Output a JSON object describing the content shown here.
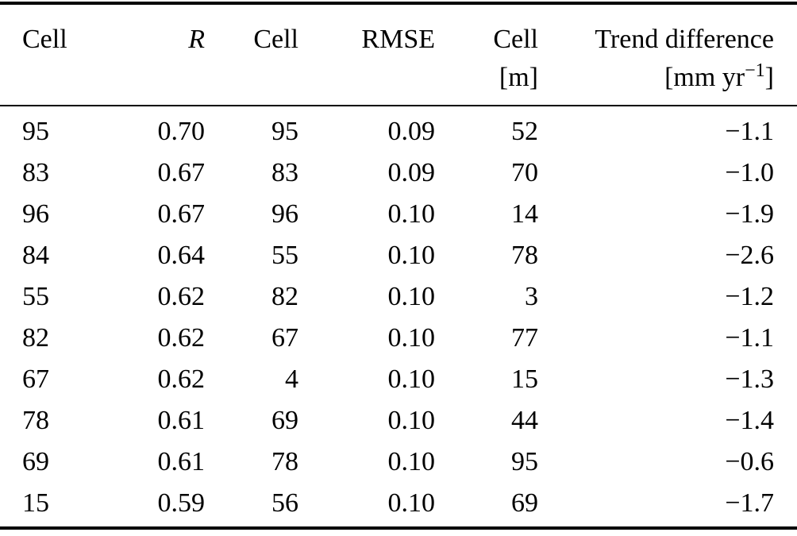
{
  "table": {
    "columns": [
      {
        "label": "Cell",
        "unit": ""
      },
      {
        "label": "R",
        "unit": ""
      },
      {
        "label": "Cell",
        "unit": ""
      },
      {
        "label": "RMSE",
        "unit": ""
      },
      {
        "label": "Cell",
        "unit": "[m]"
      },
      {
        "label": "Trend difference",
        "unit_prefix": "[mm yr",
        "unit_sup": "−1",
        "unit_suffix": "]"
      }
    ],
    "rows": [
      [
        "95",
        "0.70",
        "95",
        "0.09",
        "52",
        "−1.1"
      ],
      [
        "83",
        "0.67",
        "83",
        "0.09",
        "70",
        "−1.0"
      ],
      [
        "96",
        "0.67",
        "96",
        "0.10",
        "14",
        "−1.9"
      ],
      [
        "84",
        "0.64",
        "55",
        "0.10",
        "78",
        "−2.6"
      ],
      [
        "55",
        "0.62",
        "82",
        "0.10",
        "3",
        "−1.2"
      ],
      [
        "82",
        "0.62",
        "67",
        "0.10",
        "77",
        "−1.1"
      ],
      [
        "67",
        "0.62",
        "4",
        "0.10",
        "15",
        "−1.3"
      ],
      [
        "78",
        "0.61",
        "69",
        "0.10",
        "44",
        "−1.4"
      ],
      [
        "69",
        "0.61",
        "78",
        "0.10",
        "95",
        "−0.6"
      ],
      [
        "15",
        "0.59",
        "56",
        "0.10",
        "69",
        "−1.7"
      ]
    ]
  }
}
